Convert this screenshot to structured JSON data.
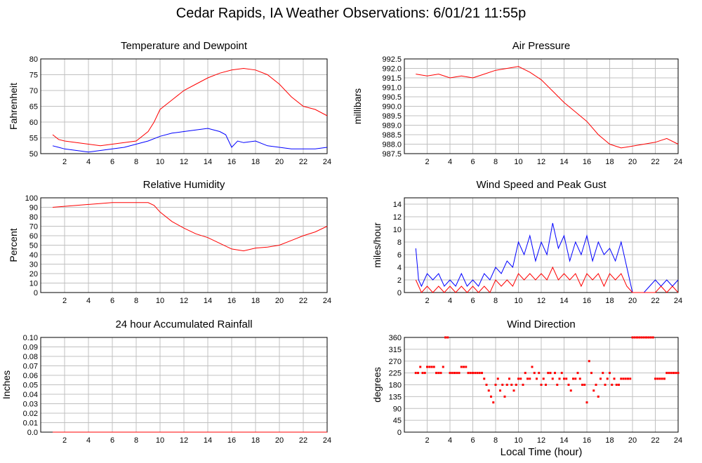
{
  "title": "Cedar Rapids, IA Weather Observations: 6/01/21 11:55p",
  "x_axis_title": "Local Time (hour)",
  "chart_data": [
    {
      "id": "temp",
      "type": "line",
      "title": "Temperature and Dewpoint",
      "ylabel": "Fahrenheit",
      "xlim": [
        0,
        24
      ],
      "ylim": [
        50,
        80
      ],
      "yticks": [
        50,
        55,
        60,
        65,
        70,
        75,
        80
      ],
      "xticks": [
        2,
        4,
        6,
        8,
        10,
        12,
        14,
        16,
        18,
        20,
        22,
        24
      ],
      "grid": true,
      "series": [
        {
          "color": "#ff0000",
          "x": [
            1,
            1.5,
            2,
            3,
            4,
            5,
            6,
            7,
            8,
            9,
            9.5,
            10,
            11,
            12,
            13,
            14,
            15,
            16,
            17,
            18,
            19,
            20,
            21,
            22,
            23,
            24
          ],
          "y": [
            56,
            54.5,
            54,
            53.5,
            53,
            52.5,
            53,
            53.5,
            54,
            57,
            60,
            64,
            67,
            70,
            72,
            74,
            75.5,
            76.5,
            77,
            76.5,
            75,
            72,
            68,
            65,
            64,
            62
          ]
        },
        {
          "color": "#0000ff",
          "x": [
            1,
            1.5,
            2,
            3,
            4,
            5,
            6,
            7,
            8,
            9,
            10,
            11,
            12,
            13,
            14,
            15,
            15.5,
            16,
            16.5,
            17,
            18,
            19,
            20,
            21,
            22,
            23,
            24
          ],
          "y": [
            52.5,
            52,
            51.5,
            51,
            50.5,
            51,
            51.5,
            52,
            53,
            54,
            55.5,
            56.5,
            57,
            57.5,
            58,
            57,
            56,
            52,
            54,
            53.5,
            54,
            52.5,
            52,
            51.5,
            51.5,
            51.5,
            52
          ]
        }
      ]
    },
    {
      "id": "pressure",
      "type": "line",
      "title": "Air Pressure",
      "ylabel": "millibars",
      "xlim": [
        0,
        24
      ],
      "ylim": [
        987.5,
        992.5
      ],
      "yticks": [
        987.5,
        988.0,
        988.5,
        989.0,
        989.5,
        990.0,
        990.5,
        991.0,
        991.5,
        992.0,
        992.5
      ],
      "xticks": [
        2,
        4,
        6,
        8,
        10,
        12,
        14,
        16,
        18,
        20,
        22,
        24
      ],
      "grid": true,
      "series": [
        {
          "color": "#ff0000",
          "x": [
            1,
            2,
            3,
            4,
            5,
            6,
            7,
            8,
            9,
            10,
            11,
            12,
            13,
            14,
            15,
            16,
            17,
            18,
            19,
            20,
            21,
            22,
            23,
            24
          ],
          "y": [
            991.7,
            991.6,
            991.7,
            991.5,
            991.6,
            991.5,
            991.7,
            991.9,
            992.0,
            992.1,
            991.8,
            991.4,
            990.8,
            990.2,
            989.7,
            989.2,
            988.5,
            988.0,
            987.8,
            987.9,
            988.0,
            988.1,
            988.3,
            988.0
          ]
        }
      ]
    },
    {
      "id": "humidity",
      "type": "line",
      "title": "Relative Humidity",
      "ylabel": "Percent",
      "xlim": [
        0,
        24
      ],
      "ylim": [
        0,
        100
      ],
      "yticks": [
        0,
        10,
        20,
        30,
        40,
        50,
        60,
        70,
        80,
        90,
        100
      ],
      "xticks": [
        2,
        4,
        6,
        8,
        10,
        12,
        14,
        16,
        18,
        20,
        22,
        24
      ],
      "grid": true,
      "series": [
        {
          "color": "#ff0000",
          "x": [
            1,
            2,
            3,
            4,
            5,
            6,
            7,
            8,
            9,
            9.5,
            10,
            11,
            12,
            13,
            14,
            15,
            16,
            17,
            18,
            19,
            20,
            21,
            22,
            23,
            24
          ],
          "y": [
            90,
            91,
            92,
            93,
            94,
            95,
            95,
            95,
            95,
            92,
            85,
            75,
            68,
            62,
            58,
            52,
            46,
            44,
            47,
            48,
            50,
            55,
            60,
            64,
            70
          ]
        }
      ]
    },
    {
      "id": "wind",
      "type": "line",
      "title": "Wind Speed and Peak Gust",
      "ylabel": "miles/hour",
      "xlim": [
        0,
        24
      ],
      "ylim": [
        0,
        15
      ],
      "yticks": [
        0,
        2,
        4,
        6,
        8,
        10,
        12,
        14
      ],
      "xticks": [
        2,
        4,
        6,
        8,
        10,
        12,
        14,
        16,
        18,
        20,
        22,
        24
      ],
      "grid": true,
      "series": [
        {
          "color": "#0000ff",
          "x": [
            1,
            1.25,
            1.5,
            2,
            2.5,
            3,
            3.5,
            4,
            4.5,
            5,
            5.5,
            6,
            6.5,
            7,
            7.5,
            8,
            8.5,
            9,
            9.5,
            10,
            10.5,
            11,
            11.5,
            12,
            12.5,
            13,
            13.5,
            14,
            14.5,
            15,
            15.5,
            16,
            16.5,
            17,
            17.5,
            18,
            18.5,
            19,
            19.5,
            20,
            20.5,
            21,
            21.5,
            22,
            22.5,
            23,
            23.5,
            24
          ],
          "y": [
            7,
            2,
            1,
            3,
            2,
            3,
            1,
            2,
            1,
            3,
            1,
            2,
            1,
            3,
            2,
            4,
            3,
            5,
            4,
            8,
            6,
            9,
            5,
            8,
            6,
            11,
            7,
            9,
            5,
            8,
            6,
            9,
            5,
            8,
            6,
            7,
            5,
            8,
            4,
            0,
            0,
            0,
            1,
            2,
            1,
            2,
            1,
            2
          ]
        },
        {
          "color": "#ff0000",
          "x": [
            1,
            1.5,
            2,
            2.5,
            3,
            3.5,
            4,
            4.5,
            5,
            5.5,
            6,
            6.5,
            7,
            7.5,
            8,
            8.5,
            9,
            9.5,
            10,
            10.5,
            11,
            11.5,
            12,
            12.5,
            13,
            13.5,
            14,
            14.5,
            15,
            15.5,
            16,
            16.5,
            17,
            17.5,
            18,
            18.5,
            19,
            19.5,
            20,
            20.5,
            21,
            21.5,
            22,
            22.5,
            23,
            23.5,
            24
          ],
          "y": [
            2,
            0,
            1,
            0,
            1,
            0,
            1,
            0,
            1,
            0,
            1,
            0,
            1,
            0,
            2,
            1,
            2,
            1,
            3,
            2,
            3,
            2,
            3,
            2,
            4,
            2,
            3,
            2,
            3,
            1,
            3,
            2,
            3,
            1,
            3,
            2,
            3,
            1,
            0,
            0,
            0,
            0,
            0,
            1,
            0,
            1,
            0
          ]
        }
      ]
    },
    {
      "id": "rain",
      "type": "line",
      "title": "24 hour Accumulated Rainfall",
      "ylabel": "Inches",
      "xlim": [
        0,
        24
      ],
      "ylim": [
        0,
        0.1
      ],
      "yticks": [
        0.0,
        0.01,
        0.02,
        0.03,
        0.04,
        0.05,
        0.06,
        0.07,
        0.08,
        0.09,
        0.1
      ],
      "xticks": [
        2,
        4,
        6,
        8,
        10,
        12,
        14,
        16,
        18,
        20,
        22,
        24
      ],
      "grid": true,
      "series": [
        {
          "color": "#ff0000",
          "x": [
            1,
            24
          ],
          "y": [
            0,
            0
          ]
        }
      ]
    },
    {
      "id": "direction",
      "type": "scatter",
      "title": "Wind Direction",
      "ylabel": "degrees",
      "xlim": [
        0,
        24
      ],
      "ylim": [
        0,
        360
      ],
      "yticks": [
        0,
        45,
        90,
        135,
        180,
        225,
        270,
        315,
        360
      ],
      "xticks": [
        2,
        4,
        6,
        8,
        10,
        12,
        14,
        16,
        18,
        20,
        22,
        24
      ],
      "grid": true,
      "series": [
        {
          "color": "#ff0000",
          "x": [
            1,
            1.2,
            1.4,
            1.6,
            1.8,
            2,
            2.2,
            2.4,
            2.6,
            2.8,
            3,
            3.2,
            3.4,
            3.6,
            3.8,
            4,
            4.2,
            4.4,
            4.6,
            4.8,
            5,
            5.2,
            5.4,
            5.6,
            5.8,
            6,
            6.2,
            6.4,
            6.6,
            6.8,
            7,
            7.2,
            7.4,
            7.6,
            7.8,
            8,
            8.2,
            8.4,
            8.6,
            8.8,
            9,
            9.2,
            9.4,
            9.6,
            9.8,
            10,
            10.2,
            10.4,
            10.6,
            10.8,
            11,
            11.2,
            11.4,
            11.6,
            11.8,
            12,
            12.2,
            12.4,
            12.6,
            12.8,
            13,
            13.2,
            13.4,
            13.6,
            13.8,
            14,
            14.2,
            14.4,
            14.6,
            14.8,
            15,
            15.2,
            15.4,
            15.6,
            15.8,
            16,
            16.2,
            16.4,
            16.6,
            16.8,
            17,
            17.2,
            17.4,
            17.6,
            17.8,
            18,
            18.2,
            18.4,
            18.6,
            18.8,
            19,
            19.2,
            19.4,
            19.6,
            19.8,
            20,
            20.2,
            20.4,
            20.6,
            20.8,
            21,
            21.2,
            21.4,
            21.6,
            21.8,
            22,
            22.2,
            22.4,
            22.6,
            22.8,
            23,
            23.2,
            23.4,
            23.6,
            23.8,
            24
          ],
          "y": [
            225,
            225,
            248,
            225,
            225,
            248,
            248,
            248,
            248,
            225,
            225,
            225,
            248,
            360,
            360,
            225,
            225,
            225,
            225,
            225,
            248,
            248,
            248,
            225,
            225,
            225,
            225,
            225,
            225,
            225,
            203,
            180,
            158,
            135,
            113,
            180,
            203,
            158,
            180,
            135,
            180,
            203,
            180,
            158,
            180,
            203,
            203,
            180,
            225,
            203,
            203,
            248,
            225,
            203,
            225,
            180,
            203,
            180,
            225,
            225,
            203,
            225,
            180,
            203,
            225,
            203,
            203,
            180,
            158,
            203,
            203,
            225,
            203,
            180,
            180,
            113,
            270,
            225,
            158,
            180,
            135,
            203,
            225,
            180,
            203,
            225,
            180,
            203,
            180,
            180,
            203,
            203,
            203,
            203,
            203,
            360,
            360,
            360,
            360,
            360,
            360,
            360,
            360,
            360,
            360,
            203,
            203,
            203,
            203,
            203,
            225,
            225,
            225,
            225,
            225,
            225
          ]
        }
      ]
    }
  ]
}
